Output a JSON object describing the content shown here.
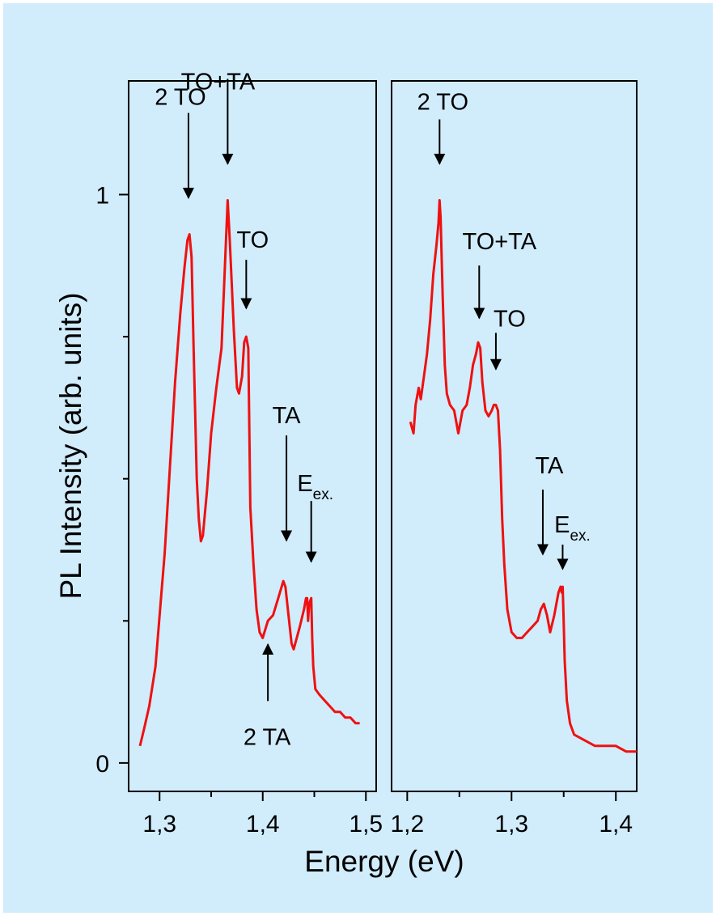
{
  "figure": {
    "background_color": "#d1ecfb",
    "line_color": "#ee1111",
    "xlabel": "Energy (eV)",
    "ylabel": "PL Intensity (arb. units)"
  },
  "chart_data": [
    {
      "type": "line",
      "xlim": [
        1.27,
        1.51
      ],
      "ylim": [
        -0.05,
        1.2
      ],
      "xticks": [
        1.3,
        1.4,
        1.5
      ],
      "xtick_labels": [
        "1,3",
        "1,4",
        "1,5"
      ],
      "yticks": [
        0,
        1
      ],
      "ytick_labels": [
        "0",
        "1"
      ],
      "series": [
        {
          "x": [
            1.281,
            1.285,
            1.29,
            1.296,
            1.3,
            1.305,
            1.31,
            1.315,
            1.32,
            1.324,
            1.327,
            1.329,
            1.331,
            1.333,
            1.336,
            1.338,
            1.34,
            1.342,
            1.346,
            1.35,
            1.355,
            1.36,
            1.363,
            1.366,
            1.368,
            1.372,
            1.375,
            1.377,
            1.38,
            1.382,
            1.384,
            1.386,
            1.388,
            1.391,
            1.394,
            1.397,
            1.4,
            1.405,
            1.41,
            1.415,
            1.42,
            1.422,
            1.425,
            1.428,
            1.43,
            1.433,
            1.436,
            1.44,
            1.442,
            1.443,
            1.444,
            1.445,
            1.447,
            1.448,
            1.449,
            1.45,
            1.451,
            1.455,
            1.46,
            1.465,
            1.47,
            1.475,
            1.48,
            1.485,
            1.49,
            1.494
          ],
          "y": [
            0.03,
            0.06,
            0.1,
            0.17,
            0.26,
            0.37,
            0.52,
            0.67,
            0.79,
            0.87,
            0.92,
            0.93,
            0.89,
            0.73,
            0.5,
            0.43,
            0.39,
            0.4,
            0.48,
            0.58,
            0.66,
            0.73,
            0.86,
            0.99,
            0.92,
            0.76,
            0.66,
            0.65,
            0.68,
            0.74,
            0.75,
            0.73,
            0.45,
            0.35,
            0.27,
            0.23,
            0.22,
            0.25,
            0.26,
            0.29,
            0.32,
            0.31,
            0.26,
            0.21,
            0.2,
            0.22,
            0.24,
            0.27,
            0.29,
            0.29,
            0.25,
            0.28,
            0.29,
            0.22,
            0.17,
            0.15,
            0.13,
            0.12,
            0.11,
            0.1,
            0.09,
            0.09,
            0.08,
            0.08,
            0.07,
            0.07
          ]
        }
      ],
      "annotations": [
        {
          "text": "2 TO",
          "x": 1.328,
          "y": 0.93,
          "arrow": "down"
        },
        {
          "text": "TO+TA",
          "x": 1.366,
          "y": 0.99,
          "arrow": "down"
        },
        {
          "text": "TO",
          "x": 1.384,
          "y": 0.75,
          "arrow": "down"
        },
        {
          "text": "TA",
          "x": 1.423,
          "y": 0.32,
          "arrow": "down"
        },
        {
          "text": "E",
          "subscript": "ex.",
          "x": 1.447,
          "y": 0.29,
          "arrow": "down"
        },
        {
          "text": "2 TA",
          "x": 1.405,
          "y": 0.22,
          "arrow": "up"
        }
      ]
    },
    {
      "type": "line",
      "xlim": [
        1.185,
        1.42
      ],
      "ylim": [
        -0.05,
        1.2
      ],
      "xticks": [
        1.2,
        1.3,
        1.4
      ],
      "xtick_labels": [
        "1,2",
        "1,3",
        "1,4"
      ],
      "yticks": [],
      "ytick_labels": [],
      "series": [
        {
          "x": [
            1.203,
            1.206,
            1.208,
            1.211,
            1.213,
            1.216,
            1.219,
            1.222,
            1.225,
            1.228,
            1.23,
            1.231,
            1.232,
            1.234,
            1.236,
            1.238,
            1.241,
            1.245,
            1.249,
            1.253,
            1.257,
            1.26,
            1.263,
            1.266,
            1.268,
            1.27,
            1.272,
            1.275,
            1.278,
            1.281,
            1.283,
            1.285,
            1.287,
            1.289,
            1.291,
            1.293,
            1.296,
            1.3,
            1.305,
            1.31,
            1.315,
            1.32,
            1.325,
            1.328,
            1.331,
            1.334,
            1.337,
            1.341,
            1.345,
            1.347,
            1.348,
            1.349,
            1.35,
            1.351,
            1.353,
            1.356,
            1.36,
            1.37,
            1.38,
            1.39,
            1.4,
            1.41,
            1.42
          ],
          "y": [
            0.6,
            0.58,
            0.63,
            0.66,
            0.64,
            0.68,
            0.72,
            0.78,
            0.86,
            0.91,
            0.95,
            0.99,
            0.96,
            0.82,
            0.7,
            0.65,
            0.63,
            0.62,
            0.58,
            0.62,
            0.63,
            0.66,
            0.7,
            0.72,
            0.74,
            0.73,
            0.67,
            0.62,
            0.61,
            0.62,
            0.63,
            0.63,
            0.62,
            0.55,
            0.43,
            0.35,
            0.27,
            0.23,
            0.22,
            0.22,
            0.23,
            0.24,
            0.25,
            0.27,
            0.28,
            0.26,
            0.23,
            0.26,
            0.3,
            0.31,
            0.3,
            0.31,
            0.25,
            0.18,
            0.11,
            0.07,
            0.05,
            0.04,
            0.03,
            0.03,
            0.03,
            0.02,
            0.02
          ]
        }
      ],
      "annotations": [
        {
          "text": "2 TO",
          "x": 1.231,
          "y": 0.99,
          "arrow": "down"
        },
        {
          "text": "TO+TA",
          "x": 1.269,
          "y": 0.74,
          "arrow": "down"
        },
        {
          "text": "TO",
          "x": 1.285,
          "y": 0.65,
          "arrow": "down"
        },
        {
          "text": "TA",
          "x": 1.33,
          "y": 0.31,
          "arrow": "down"
        },
        {
          "text": "E",
          "subscript": "ex.",
          "x": 1.349,
          "y": 0.32,
          "arrow": "down"
        }
      ]
    }
  ]
}
